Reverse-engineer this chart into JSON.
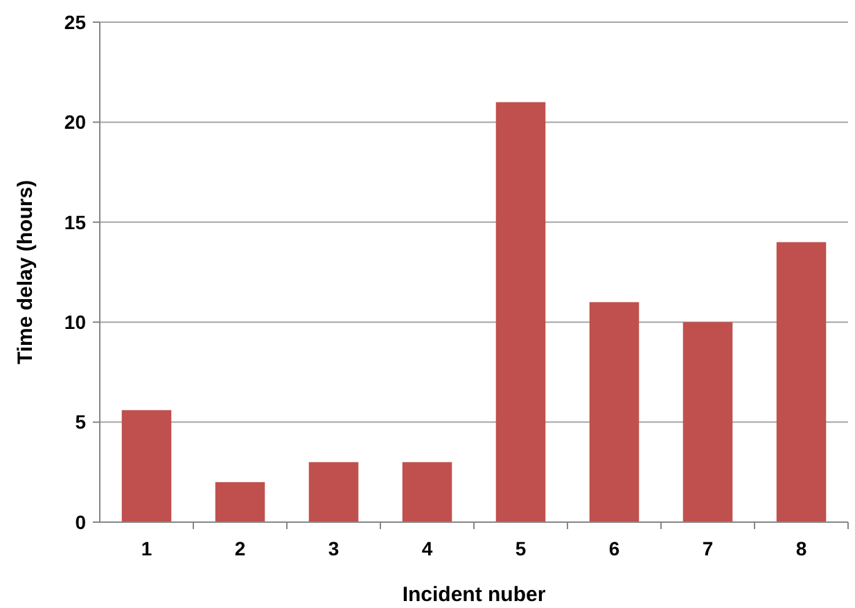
{
  "chart_data": {
    "type": "bar",
    "xlabel": "Incident nuber",
    "ylabel": "Time delay (hours)",
    "categories": [
      "1",
      "2",
      "3",
      "4",
      "5",
      "6",
      "7",
      "8"
    ],
    "values": [
      5.6,
      2,
      3,
      3,
      21,
      11,
      10,
      14
    ],
    "color": "#c0504d",
    "ylim": [
      0,
      25
    ],
    "yticks": [
      0,
      5,
      10,
      15,
      20,
      25
    ],
    "grid": "y"
  }
}
